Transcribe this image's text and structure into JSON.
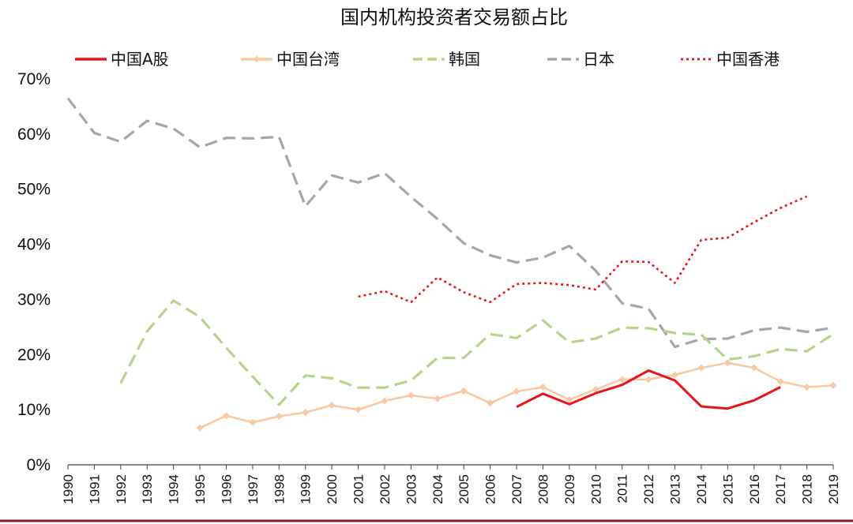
{
  "chart_data": {
    "type": "line",
    "title": "国内机构投资者交易额占比",
    "xlabel": "",
    "ylabel": "",
    "ylim": [
      0,
      70
    ],
    "y_ticks": [
      "0%",
      "10%",
      "20%",
      "30%",
      "40%",
      "50%",
      "60%",
      "70%"
    ],
    "grid": false,
    "legend_position": "top",
    "categories": [
      "1990",
      "1991",
      "1992",
      "1993",
      "1994",
      "1995",
      "1996",
      "1997",
      "1998",
      "1999",
      "2000",
      "2001",
      "2002",
      "2003",
      "2004",
      "2005",
      "2006",
      "2007",
      "2008",
      "2009",
      "2010",
      "2011",
      "2012",
      "2013",
      "2014",
      "2015",
      "2016",
      "2017",
      "2018",
      "2019"
    ],
    "series": [
      {
        "name": "中国A股",
        "color": "#e8141b",
        "style": "solid",
        "values": [
          null,
          null,
          null,
          null,
          null,
          null,
          null,
          null,
          null,
          null,
          null,
          null,
          null,
          null,
          null,
          null,
          null,
          10.5,
          12.9,
          11.0,
          13.0,
          14.5,
          17.1,
          15.3,
          10.6,
          10.2,
          11.7,
          14.1,
          null,
          null
        ]
      },
      {
        "name": "中国台湾",
        "color": "#f8c9a4",
        "style": "solid-markers",
        "values": [
          null,
          null,
          null,
          null,
          null,
          6.7,
          8.9,
          7.7,
          8.8,
          9.5,
          10.8,
          10.0,
          11.6,
          12.6,
          12.0,
          13.4,
          11.2,
          13.3,
          14.1,
          11.8,
          13.7,
          15.5,
          15.5,
          16.3,
          17.6,
          18.5,
          17.6,
          15.1,
          14.1,
          14.4
        ]
      },
      {
        "name": "韩国",
        "color": "#b6d48b",
        "style": "dashed",
        "values": [
          null,
          null,
          14.8,
          24.2,
          29.8,
          26.8,
          21.2,
          16.0,
          10.9,
          16.2,
          15.7,
          14.0,
          14.0,
          15.3,
          19.4,
          19.4,
          23.7,
          23.0,
          26.2,
          22.2,
          22.9,
          24.9,
          24.8,
          23.9,
          23.6,
          19.1,
          19.7,
          21.0,
          20.6,
          23.7
        ]
      },
      {
        "name": "日本",
        "color": "#a6a6a6",
        "style": "dashed",
        "values": [
          66.5,
          60.2,
          58.6,
          62.4,
          61.0,
          57.6,
          59.3,
          59.2,
          59.5,
          46.9,
          52.5,
          51.2,
          52.9,
          48.6,
          44.6,
          40.2,
          38.0,
          36.7,
          37.6,
          39.7,
          35.2,
          29.3,
          28.3,
          21.4,
          22.8,
          22.9,
          24.4,
          24.9,
          24.1,
          24.9
        ]
      },
      {
        "name": "中国香港",
        "color": "#e8141b",
        "style": "dotted",
        "values": [
          null,
          null,
          null,
          null,
          null,
          null,
          null,
          null,
          null,
          null,
          null,
          30.5,
          31.5,
          29.5,
          34.0,
          31.3,
          29.5,
          32.8,
          33.0,
          32.6,
          31.8,
          36.9,
          36.8,
          33.0,
          40.8,
          41.2,
          44.0,
          46.6,
          48.7,
          null
        ]
      }
    ]
  }
}
